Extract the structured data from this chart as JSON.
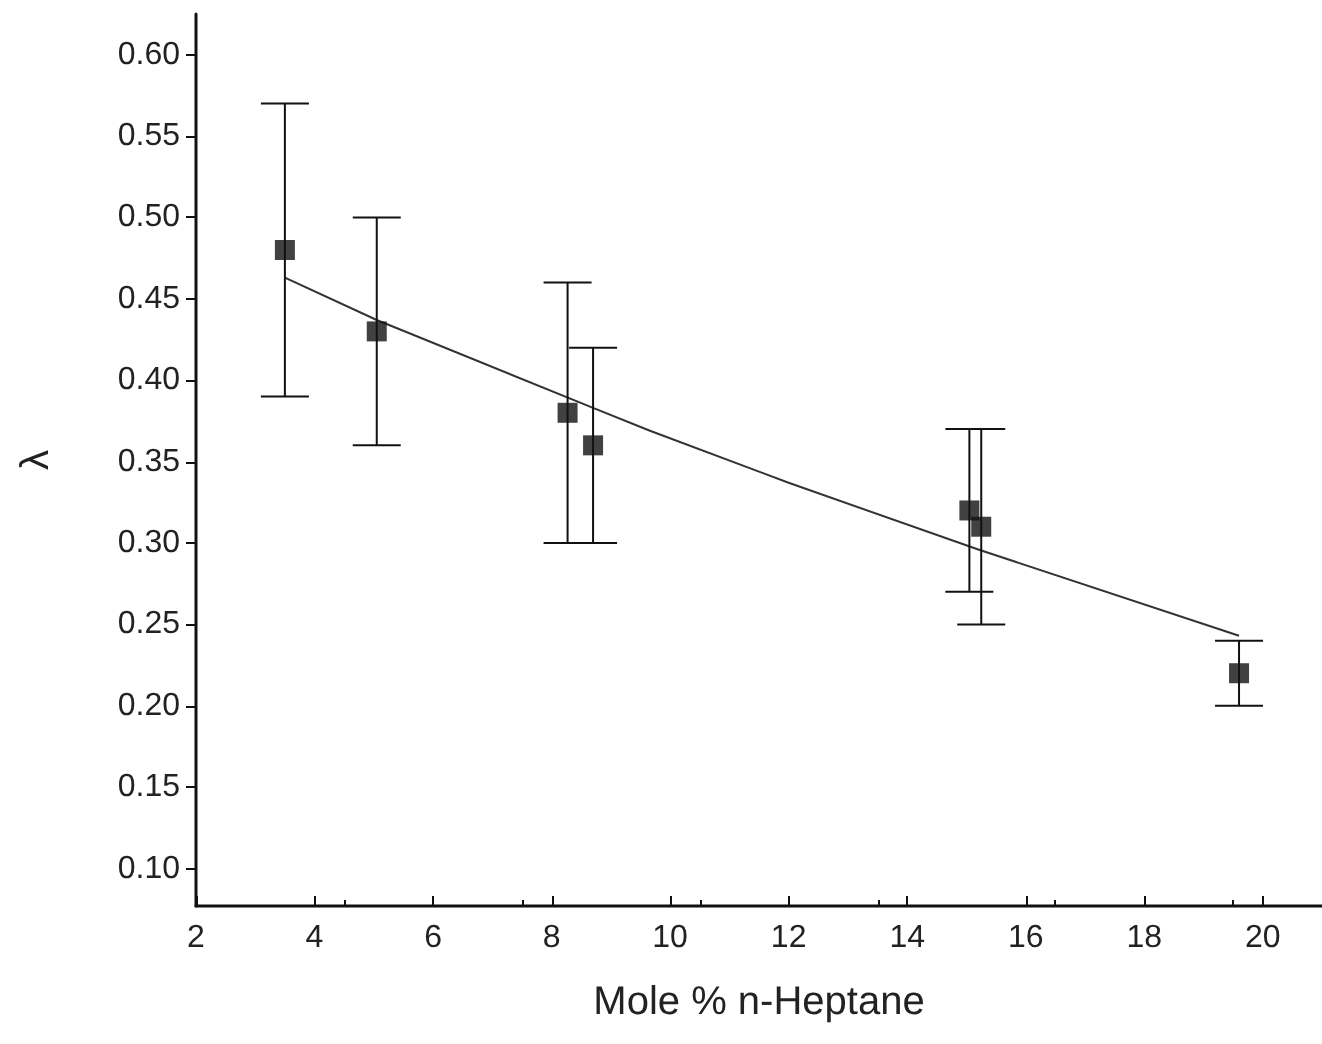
{
  "chart_data": {
    "type": "scatter",
    "xlabel": "Mole % n-Heptane",
    "ylabel": "λ",
    "xlim": [
      2,
      21
    ],
    "xticks": [
      2,
      4,
      6,
      8,
      10,
      12,
      14,
      16,
      18,
      20
    ],
    "ylim": [
      0.077,
      0.625
    ],
    "yticks": [
      {
        "value": 0.1,
        "label": "0.10"
      },
      0.15,
      {
        "value": 0.2,
        "label": "0.20"
      },
      0.25,
      {
        "value": 0.3,
        "label": "0.30"
      },
      0.35,
      {
        "value": 0.4,
        "label": "0.40"
      },
      0.45,
      {
        "value": 0.5,
        "label": "0.50"
      },
      0.55,
      {
        "value": 0.6,
        "label": "0.60"
      }
    ],
    "grid": false,
    "series": [
      {
        "marker": "square",
        "color": "#111111",
        "x": [
          3.5,
          5.05,
          8.27,
          8.7,
          15.05,
          15.25,
          19.6
        ],
        "values": [
          0.48,
          0.43,
          0.38,
          0.36,
          0.32,
          0.31,
          0.22
        ],
        "errors": [
          [
            0.39,
            0.57
          ],
          [
            0.36,
            0.5
          ],
          [
            0.3,
            0.46
          ],
          [
            0.3,
            0.42
          ],
          [
            0.27,
            0.37
          ],
          [
            0.25,
            0.37
          ],
          [
            0.2,
            0.24
          ]
        ]
      },
      {
        "type": "line",
        "marker": "none",
        "line_style": "solid",
        "color": "#333333",
        "x": [
          3.5,
          5.05,
          8.7,
          9.66,
          12,
          15.2,
          19.6
        ],
        "values": [
          0.463,
          0.437,
          0.383,
          0.369,
          0.337,
          0.296,
          0.243
        ]
      }
    ]
  }
}
